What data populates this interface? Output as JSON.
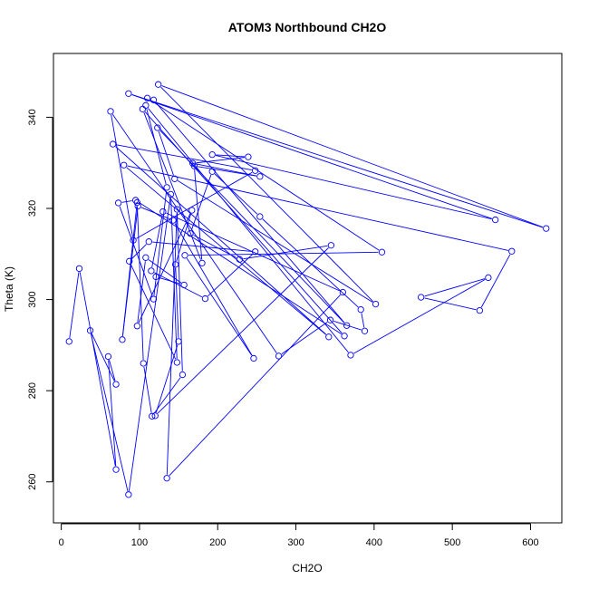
{
  "chart_data": {
    "type": "scatter",
    "title": "ATOM3 Northbound CH2O",
    "xlabel": "CH2O",
    "ylabel": "Theta (K)",
    "xlim": [
      -10,
      640
    ],
    "ylim": [
      251,
      354
    ],
    "x_ticks": [
      0,
      100,
      200,
      300,
      400,
      500,
      600
    ],
    "y_ticks": [
      260,
      280,
      300,
      320,
      340
    ],
    "x_tick_labels": [
      "0",
      "100",
      "200",
      "300",
      "400",
      "500",
      "600"
    ],
    "y_tick_labels": [
      "260",
      "280",
      "300",
      "320",
      "340"
    ],
    "grid": false,
    "color": "#0000ff",
    "marker": "open-circle",
    "connected": true,
    "points": [
      [
        10,
        290.8
      ],
      [
        23,
        306.8
      ],
      [
        70,
        262.7
      ],
      [
        60,
        287.5
      ],
      [
        70,
        281.4
      ],
      [
        37,
        293.2
      ],
      [
        86,
        257.2
      ],
      [
        140,
        323.1
      ],
      [
        148,
        286.2
      ],
      [
        87,
        308.4
      ],
      [
        112,
        312.7
      ],
      [
        248,
        310.5
      ],
      [
        184,
        300.2
      ],
      [
        115,
        306.3
      ],
      [
        130,
        319.3
      ],
      [
        360,
        301.6
      ],
      [
        135,
        260.8
      ],
      [
        148,
        319.8
      ],
      [
        155,
        283.5
      ],
      [
        116,
        274.4
      ],
      [
        105,
        286.0
      ],
      [
        97,
        321.3
      ],
      [
        78,
        291.2
      ],
      [
        98,
        320.5
      ],
      [
        143,
        317.4
      ],
      [
        246,
        287.1
      ],
      [
        158,
        309.7
      ],
      [
        410,
        310.4
      ],
      [
        110,
        344.2
      ],
      [
        118,
        343.8
      ],
      [
        365,
        294.3
      ],
      [
        123,
        337.7
      ],
      [
        145,
        326.5
      ],
      [
        402,
        299.0
      ],
      [
        124,
        347.2
      ],
      [
        620,
        315.6
      ],
      [
        86,
        345.2
      ],
      [
        555,
        317.5
      ],
      [
        193,
        331.8
      ],
      [
        239,
        331.3
      ],
      [
        168,
        329.9
      ],
      [
        254,
        327.0
      ],
      [
        170,
        329.3
      ],
      [
        180,
        308.0
      ],
      [
        104,
        341.8
      ],
      [
        362,
        292.0
      ],
      [
        95,
        321.8
      ],
      [
        73,
        321.2
      ],
      [
        118,
        300.1
      ],
      [
        135,
        324.6
      ],
      [
        108,
        342.6
      ],
      [
        370,
        287.8
      ],
      [
        546,
        304.8
      ],
      [
        460,
        300.5
      ],
      [
        535,
        297.6
      ],
      [
        576,
        310.6
      ],
      [
        80,
        329.5
      ],
      [
        342,
        291.8
      ],
      [
        66,
        334.1
      ],
      [
        248,
        328.3
      ],
      [
        92,
        313.0
      ],
      [
        63,
        341.3
      ],
      [
        278,
        287.6
      ],
      [
        344,
        295.5
      ],
      [
        388,
        293.1
      ],
      [
        383,
        297.8
      ],
      [
        254,
        318.2
      ],
      [
        193,
        328.1
      ],
      [
        165,
        314.5
      ],
      [
        228,
        308.8
      ],
      [
        345,
        311.9
      ],
      [
        120,
        274.5
      ],
      [
        150,
        290.8
      ],
      [
        146,
        307.7
      ],
      [
        167,
        319.6
      ],
      [
        97,
        294.2
      ],
      [
        108,
        309.2
      ],
      [
        157,
        303.2
      ],
      [
        121,
        305.0
      ]
    ]
  }
}
